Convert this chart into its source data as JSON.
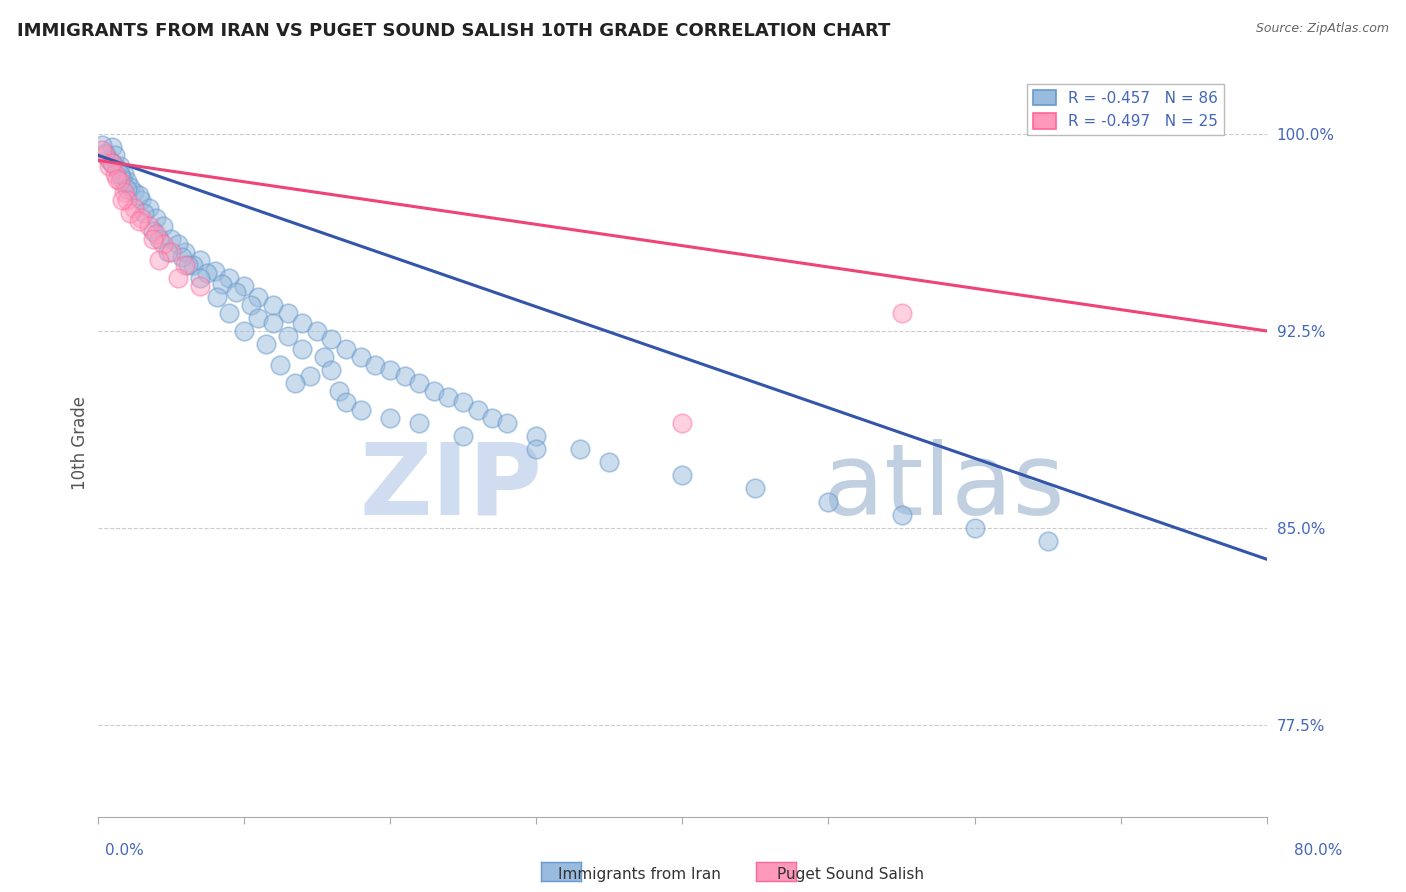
{
  "title": "IMMIGRANTS FROM IRAN VS PUGET SOUND SALISH 10TH GRADE CORRELATION CHART",
  "source": "Source: ZipAtlas.com",
  "xlabel_bottom_left": "0.0%",
  "xlabel_bottom_right": "80.0%",
  "ylabel": "10th Grade",
  "xlim": [
    0.0,
    80.0
  ],
  "ylim": [
    74.0,
    102.5
  ],
  "yticks": [
    77.5,
    85.0,
    92.5,
    100.0
  ],
  "ytick_labels": [
    "77.5%",
    "85.0%",
    "92.5%",
    "100.0%"
  ],
  "legend1_label": "R = -0.457   N = 86",
  "legend2_label": "R = -0.497   N = 25",
  "blue_color": "#99BBDD",
  "pink_color": "#FF99BB",
  "blue_edge_color": "#6699CC",
  "pink_edge_color": "#FF6699",
  "blue_line_color": "#3355AA",
  "pink_line_color": "#EE4477",
  "tick_label_color": "#4466BB",
  "watermark_zip": "ZIP",
  "watermark_atlas": "atlas",
  "blue_scatter_x": [
    1.0,
    1.2,
    1.5,
    0.8,
    1.8,
    2.0,
    1.3,
    0.5,
    0.3,
    1.7,
    2.5,
    3.0,
    2.2,
    1.0,
    3.5,
    2.8,
    4.0,
    1.5,
    3.2,
    4.5,
    5.0,
    2.0,
    6.0,
    3.8,
    5.5,
    7.0,
    4.2,
    8.0,
    6.5,
    9.0,
    5.8,
    10.0,
    7.5,
    4.8,
    11.0,
    8.5,
    12.0,
    6.2,
    13.0,
    9.5,
    14.0,
    7.0,
    15.0,
    10.5,
    16.0,
    8.2,
    17.0,
    11.0,
    18.0,
    9.0,
    19.0,
    12.0,
    20.0,
    10.0,
    21.0,
    13.0,
    22.0,
    11.5,
    14.0,
    23.0,
    15.5,
    24.0,
    12.5,
    16.0,
    25.0,
    14.5,
    26.0,
    13.5,
    27.0,
    16.5,
    28.0,
    17.0,
    30.0,
    18.0,
    33.0,
    20.0,
    35.0,
    22.0,
    40.0,
    25.0,
    45.0,
    30.0,
    50.0,
    55.0,
    60.0,
    65.0
  ],
  "blue_scatter_y": [
    99.5,
    99.2,
    98.8,
    99.0,
    98.5,
    98.2,
    98.7,
    99.3,
    99.6,
    98.3,
    97.8,
    97.5,
    98.0,
    98.9,
    97.2,
    97.7,
    96.8,
    98.5,
    97.0,
    96.5,
    96.0,
    97.9,
    95.5,
    96.3,
    95.8,
    95.2,
    96.0,
    94.8,
    95.0,
    94.5,
    95.3,
    94.2,
    94.7,
    95.5,
    93.8,
    94.3,
    93.5,
    95.0,
    93.2,
    94.0,
    92.8,
    94.5,
    92.5,
    93.5,
    92.2,
    93.8,
    91.8,
    93.0,
    91.5,
    93.2,
    91.2,
    92.8,
    91.0,
    92.5,
    90.8,
    92.3,
    90.5,
    92.0,
    91.8,
    90.2,
    91.5,
    90.0,
    91.2,
    91.0,
    89.8,
    90.8,
    89.5,
    90.5,
    89.2,
    90.2,
    89.0,
    89.8,
    88.5,
    89.5,
    88.0,
    89.2,
    87.5,
    89.0,
    87.0,
    88.5,
    86.5,
    88.0,
    86.0,
    85.5,
    85.0,
    84.5
  ],
  "pink_scatter_x": [
    0.5,
    0.8,
    1.2,
    1.5,
    0.3,
    1.0,
    1.8,
    2.0,
    2.5,
    1.3,
    3.0,
    2.2,
    3.5,
    1.7,
    4.0,
    2.8,
    4.5,
    3.8,
    5.0,
    4.2,
    6.0,
    5.5,
    7.0,
    40.0,
    55.0
  ],
  "pink_scatter_y": [
    99.2,
    98.8,
    98.5,
    98.2,
    99.4,
    98.9,
    97.8,
    97.5,
    97.2,
    98.3,
    96.8,
    97.0,
    96.5,
    97.5,
    96.2,
    96.7,
    95.8,
    96.0,
    95.5,
    95.2,
    95.0,
    94.5,
    94.2,
    89.0,
    93.2
  ],
  "blue_line_x0": 0.0,
  "blue_line_y0": 99.2,
  "blue_line_x1": 80.0,
  "blue_line_y1": 83.8,
  "pink_line_x0": 0.0,
  "pink_line_y0": 99.0,
  "pink_line_x1": 80.0,
  "pink_line_y1": 92.5
}
